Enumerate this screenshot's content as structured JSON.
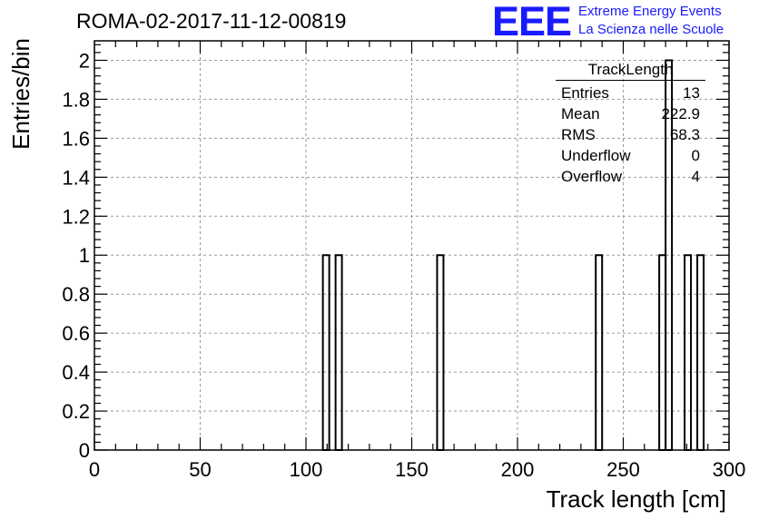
{
  "run_title": "ROMA-02-2017-11-12-00819",
  "logo": {
    "letters": "EEE",
    "line1": "Extreme Energy Events",
    "line2": "La Scienza nelle Scuole",
    "color": "#1a1aff"
  },
  "stats": {
    "title": "TrackLength",
    "rows": [
      {
        "label": "Entries",
        "value": "13"
      },
      {
        "label": "Mean",
        "value": "222.9"
      },
      {
        "label": "RMS",
        "value": "68.3"
      },
      {
        "label": "Underflow",
        "value": "0"
      },
      {
        "label": "Overflow",
        "value": "4"
      }
    ]
  },
  "chart_data": {
    "type": "bar",
    "xlabel": "Track length [cm]",
    "ylabel": "Entries/bin",
    "xlim": [
      0,
      300
    ],
    "ylim": [
      0,
      2.1
    ],
    "x_ticks": [
      0,
      50,
      100,
      150,
      200,
      250,
      300
    ],
    "x_tick_labels": [
      "0",
      "50",
      "100",
      "150",
      "200",
      "250",
      "300"
    ],
    "y_ticks": [
      0,
      0.2,
      0.4,
      0.6,
      0.8,
      1,
      1.2,
      1.4,
      1.6,
      1.8,
      2
    ],
    "y_tick_labels": [
      "0",
      "0.2",
      "0.4",
      "0.6",
      "0.8",
      "1",
      "1.2",
      "1.4",
      "1.6",
      "1.8",
      "2"
    ],
    "grid": true,
    "bin_width": 3,
    "bins": [
      {
        "x_low": 108,
        "x_high": 111,
        "value": 1
      },
      {
        "x_low": 114,
        "x_high": 117,
        "value": 1
      },
      {
        "x_low": 162,
        "x_high": 165,
        "value": 1
      },
      {
        "x_low": 237,
        "x_high": 240,
        "value": 1
      },
      {
        "x_low": 267,
        "x_high": 270,
        "value": 1
      },
      {
        "x_low": 270,
        "x_high": 273,
        "value": 2
      },
      {
        "x_low": 279,
        "x_high": 282,
        "value": 1
      },
      {
        "x_low": 285,
        "x_high": 288,
        "value": 1
      }
    ]
  }
}
